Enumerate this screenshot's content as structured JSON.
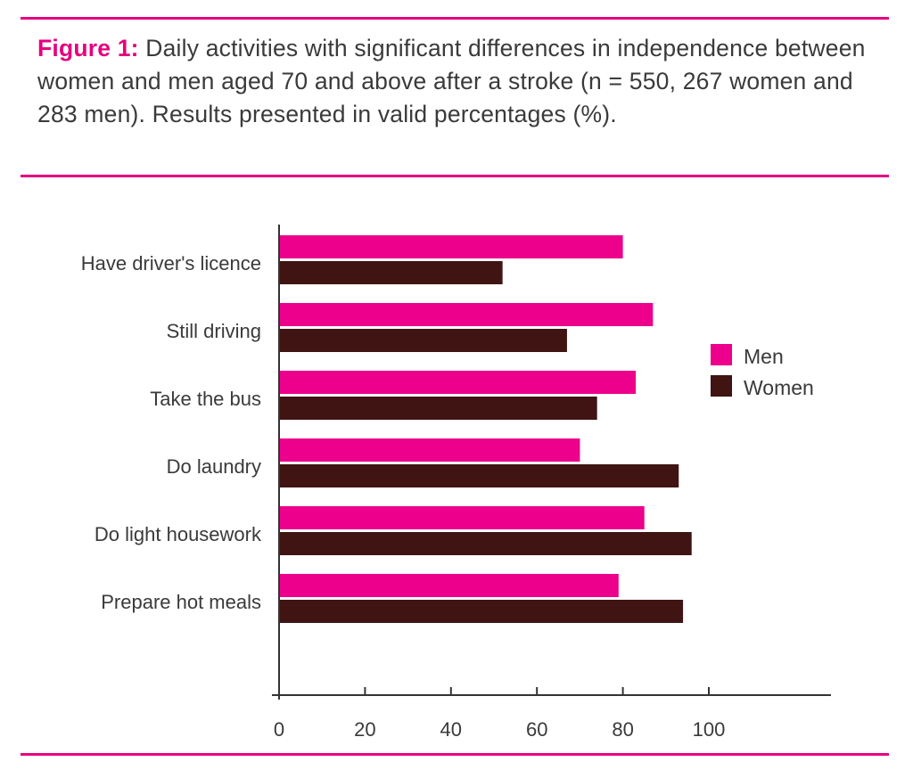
{
  "caption": {
    "label": "Figure 1:",
    "text": " Daily activities with significant  differences in independence between women and men aged 70 and above after a stroke (n = 550, 267 women and 283 men). Results presented in valid percentages (%)."
  },
  "colors": {
    "accent": "#e6007e",
    "men": "#ec008c",
    "women": "#3f1412"
  },
  "chart_data": {
    "type": "bar",
    "orientation": "horizontal",
    "categories": [
      "Have driver's licence",
      "Still driving",
      "Take the bus",
      "Do laundry",
      "Do light housework",
      "Prepare hot meals"
    ],
    "series": [
      {
        "name": "Men",
        "values": [
          80,
          87,
          83,
          70,
          85,
          79
        ]
      },
      {
        "name": "Women",
        "values": [
          52,
          67,
          74,
          93,
          96,
          94
        ]
      }
    ],
    "xticks": [
      "0",
      "20",
      "40",
      "60",
      "80",
      "100"
    ],
    "xlim": [
      0,
      100
    ],
    "grid": false,
    "legend": "right"
  }
}
